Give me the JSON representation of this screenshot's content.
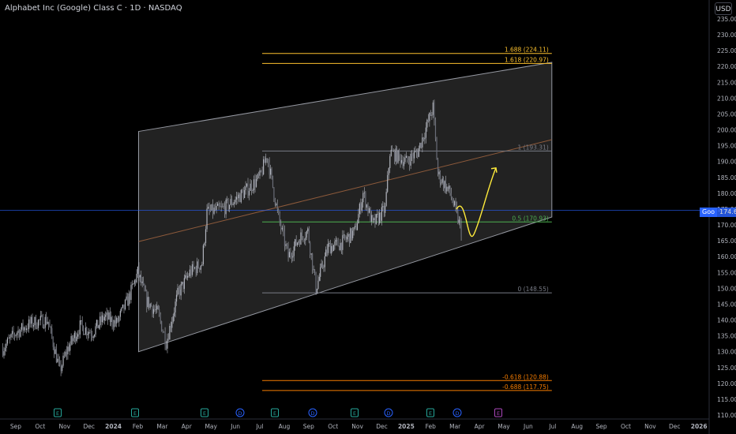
{
  "header": {
    "title": "Alphabet Inc (Google) Class C · 1D · NASDAQ",
    "currency_button": "USD"
  },
  "price_tag": {
    "symbol_badge": "Goo",
    "value": "174.61"
  },
  "chart_data": {
    "type": "candlestick",
    "title": "Alphabet Inc (Google) Class C · 1D · NASDAQ",
    "xlabel": "",
    "ylabel": "",
    "ylim": [
      108,
      238
    ],
    "y_ticks": [
      110,
      115,
      120,
      125,
      130,
      135,
      140,
      145,
      150,
      155,
      160,
      165,
      170,
      175,
      180,
      185,
      190,
      195,
      200,
      205,
      210,
      215,
      220,
      225,
      230,
      235
    ],
    "y_tick_labels": [
      "110.00",
      "115.00",
      "120.00",
      "125.00",
      "130.00",
      "135.00",
      "140.00",
      "145.00",
      "150.00",
      "155.00",
      "160.00",
      "165.00",
      "170.00",
      "175.00",
      "180.00",
      "185.00",
      "190.00",
      "195.00",
      "200.00",
      "205.00",
      "210.00",
      "215.00",
      "220.00",
      "225.00",
      "230.00",
      "235.00"
    ],
    "x_ticks": [
      "Sep",
      "Oct",
      "Nov",
      "Dec",
      "2024",
      "Feb",
      "Mar",
      "Apr",
      "May",
      "Jun",
      "Jul",
      "Aug",
      "Sep",
      "Oct",
      "Nov",
      "Dec",
      "2025",
      "Feb",
      "Mar",
      "Apr",
      "May",
      "Jun",
      "Jul",
      "Aug",
      "Sep",
      "Oct",
      "Nov",
      "Dec",
      "2026"
    ],
    "price_path": [
      [
        "2023-08-15",
        131
      ],
      [
        "2023-09-01",
        136
      ],
      [
        "2023-09-20",
        139
      ],
      [
        "2023-10-10",
        140
      ],
      [
        "2023-10-25",
        124
      ],
      [
        "2023-11-05",
        131
      ],
      [
        "2023-11-20",
        138
      ],
      [
        "2023-12-05",
        136
      ],
      [
        "2023-12-20",
        141
      ],
      [
        "2024-01-05",
        139
      ],
      [
        "2024-01-20",
        147
      ],
      [
        "2024-01-31",
        155
      ],
      [
        "2024-02-12",
        146
      ],
      [
        "2024-02-26",
        142
      ],
      [
        "2024-03-06",
        133
      ],
      [
        "2024-03-20",
        148
      ],
      [
        "2024-04-05",
        155
      ],
      [
        "2024-04-20",
        158
      ],
      [
        "2024-04-26",
        174
      ],
      [
        "2024-05-15",
        175
      ],
      [
        "2024-06-01",
        178
      ],
      [
        "2024-06-15",
        181
      ],
      [
        "2024-07-01",
        185
      ],
      [
        "2024-07-10",
        192
      ],
      [
        "2024-07-24",
        172
      ],
      [
        "2024-08-06",
        160
      ],
      [
        "2024-08-20",
        166
      ],
      [
        "2024-08-30",
        168
      ],
      [
        "2024-09-10",
        150
      ],
      [
        "2024-09-25",
        163
      ],
      [
        "2024-10-10",
        164
      ],
      [
        "2024-10-28",
        168
      ],
      [
        "2024-11-08",
        180
      ],
      [
        "2024-11-20",
        170
      ],
      [
        "2024-12-05",
        175
      ],
      [
        "2024-12-11",
        193
      ],
      [
        "2024-12-31",
        190
      ],
      [
        "2025-01-15",
        193
      ],
      [
        "2025-02-04",
        207
      ],
      [
        "2025-02-10",
        186
      ],
      [
        "2025-02-25",
        180
      ],
      [
        "2025-03-10",
        167
      ]
    ],
    "channel": {
      "upper_start": 199.5,
      "lower_start": 130,
      "upper_end": 221.3,
      "lower_end": 172.5
    },
    "fib_levels": [
      {
        "label": "1.688 (224.11)",
        "value": 224.11,
        "color": "#fbc02d"
      },
      {
        "label": "1.618 (220.97)",
        "value": 220.97,
        "color": "#fbc02d"
      },
      {
        "label": "1 (193.31)",
        "value": 193.31,
        "color": "#787b86"
      },
      {
        "label": "0.5 (170.93)",
        "value": 170.93,
        "color": "#4caf50"
      },
      {
        "label": "0 (148.55)",
        "value": 148.55,
        "color": "#787b86"
      },
      {
        "label": "-0.618 (120.88)",
        "value": 120.88,
        "color": "#f57c00"
      },
      {
        "label": "-0.688 (117.75)",
        "value": 117.75,
        "color": "#f57c00"
      }
    ],
    "current_price": 174.61,
    "projection": [
      [
        167.5,
        178
      ],
      [
        170,
        175
      ],
      [
        172,
        165
      ],
      [
        174,
        172
      ],
      [
        176,
        182
      ],
      [
        178,
        190
      ]
    ],
    "event_markers": [
      {
        "letter": "E",
        "color": "#26a69a"
      },
      {
        "letter": "E",
        "color": "#26a69a"
      },
      {
        "letter": "E",
        "color": "#26a69a"
      },
      {
        "letter": "D",
        "color": "#2962ff"
      },
      {
        "letter": "E",
        "color": "#26a69a"
      },
      {
        "letter": "D",
        "color": "#2962ff"
      },
      {
        "letter": "E",
        "color": "#26a69a"
      },
      {
        "letter": "D",
        "color": "#2962ff"
      },
      {
        "letter": "E",
        "color": "#26a69a"
      },
      {
        "letter": "D",
        "color": "#2962ff"
      },
      {
        "letter": "E",
        "color": "#ab47bc"
      }
    ],
    "colors": {
      "background": "#000000",
      "candles": "#b2b5be",
      "channel_fill": "#2a2a2a",
      "midline": "#8d5a3b",
      "projection": "#ffeb3b",
      "current_line": "#2962ff"
    }
  }
}
